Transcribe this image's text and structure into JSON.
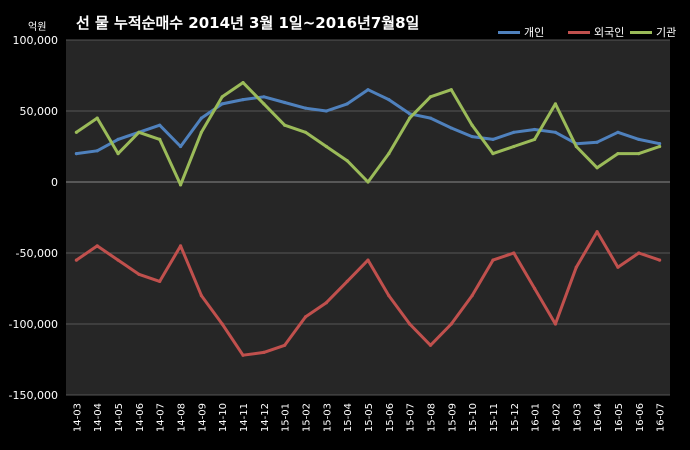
{
  "chart_data": {
    "type": "line",
    "title": "선  물  누적순매수  2014년 3월 1일~2016년7월8일",
    "unit_label": "억원",
    "ylim": [
      -150000,
      100000
    ],
    "y_ticks": [
      -150000,
      -100000,
      -50000,
      0,
      50000,
      100000
    ],
    "y_tick_labels": [
      "-150,000",
      "-100,000",
      "-50,000",
      "0",
      "50,000",
      "100,000"
    ],
    "categories": [
      "14-03",
      "14-04",
      "14-05",
      "14-06",
      "14-07",
      "14-08",
      "14-09",
      "14-10",
      "14-11",
      "14-12",
      "15-01",
      "15-02",
      "15-03",
      "15-04",
      "15-05",
      "15-06",
      "15-07",
      "15-08",
      "15-09",
      "15-10",
      "15-11",
      "15-12",
      "16-01",
      "16-02",
      "16-03",
      "16-04",
      "16-05",
      "16-06",
      "16-07"
    ],
    "grid": true,
    "legend_position": "top-right",
    "series": [
      {
        "name": "개인",
        "color": "#4f81bd",
        "values": [
          20000,
          22000,
          30000,
          35000,
          40000,
          25000,
          45000,
          55000,
          58000,
          60000,
          56000,
          52000,
          50000,
          55000,
          65000,
          58000,
          48000,
          45000,
          38000,
          32000,
          30000,
          35000,
          37000,
          35000,
          27000,
          28000,
          35000,
          30000,
          27000
        ]
      },
      {
        "name": "외국인",
        "color": "#c0504d",
        "values": [
          -55000,
          -45000,
          -55000,
          -65000,
          -70000,
          -45000,
          -80000,
          -100000,
          -122000,
          -120000,
          -115000,
          -95000,
          -85000,
          -70000,
          -55000,
          -80000,
          -100000,
          -115000,
          -100000,
          -80000,
          -55000,
          -50000,
          -75000,
          -100000,
          -60000,
          -35000,
          -60000,
          -50000,
          -55000
        ]
      },
      {
        "name": "기관",
        "color": "#9bbb59",
        "values": [
          35000,
          45000,
          20000,
          35000,
          30000,
          -2000,
          35000,
          60000,
          70000,
          55000,
          40000,
          35000,
          25000,
          15000,
          0,
          20000,
          45000,
          60000,
          65000,
          40000,
          20000,
          25000,
          30000,
          55000,
          25000,
          10000,
          20000,
          20000,
          25000
        ]
      }
    ]
  }
}
